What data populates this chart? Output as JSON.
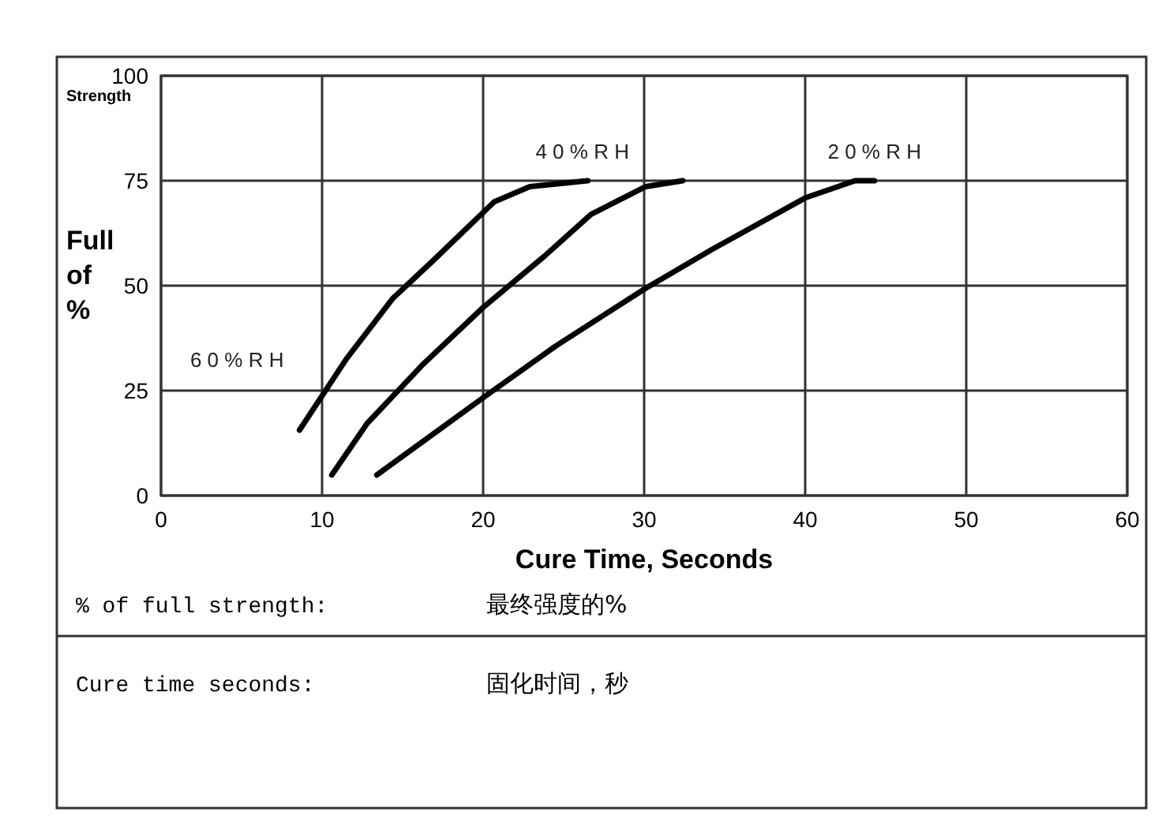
{
  "chart_data": {
    "type": "line",
    "xlabel": "Cure Time, Seconds",
    "ylabel": "Full of %",
    "xlim": [
      0,
      60
    ],
    "xticks": [
      0,
      10,
      20,
      30,
      40,
      50,
      60
    ],
    "ylim": [
      0,
      100
    ],
    "yticks": [
      0,
      25,
      50,
      75,
      100
    ],
    "grid": true,
    "marker": "none",
    "line_style": "solid",
    "series": [
      {
        "name": "6 0 % R H",
        "color": "#000000",
        "x": [
          8.6,
          11.5,
          14.4,
          16.9,
          20.7,
          22.9,
          26.5
        ],
        "values": [
          15.6,
          32.5,
          47,
          56,
          70,
          73.6,
          75
        ]
      },
      {
        "name": "4 0 % R H",
        "color": "#000000",
        "x": [
          10.6,
          12.8,
          16.2,
          20,
          23.8,
          26.7,
          30.1,
          32.4
        ],
        "values": [
          4.9,
          17.2,
          31,
          44.8,
          57,
          67,
          73.6,
          75
        ]
      },
      {
        "name": "2 0 % R H",
        "color": "#000000",
        "x": [
          13.4,
          20,
          24.5,
          30.1,
          34.2,
          40,
          43.1,
          44.3
        ],
        "values": [
          4.9,
          23.3,
          35.6,
          49.4,
          58.6,
          70.9,
          75,
          75
        ]
      }
    ],
    "annotations": [
      "Strength",
      "% of full strength:",
      "最终强度的%",
      "Cure time seconds:",
      "固化时间，秒"
    ]
  }
}
